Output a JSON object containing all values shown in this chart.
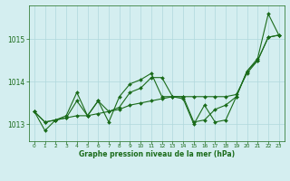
{
  "series1": [
    1013.3,
    1012.85,
    1013.1,
    1013.15,
    1013.55,
    1013.2,
    1013.55,
    1013.3,
    1013.4,
    1013.75,
    1013.85,
    1014.1,
    1014.1,
    1013.65,
    1013.6,
    1013.0,
    1013.45,
    1013.05,
    1013.1,
    1013.65,
    1014.25,
    1014.5,
    1015.05,
    1015.1
  ],
  "series2": [
    1013.3,
    1013.05,
    1013.1,
    1013.2,
    1013.75,
    1013.2,
    1013.55,
    1013.05,
    1013.65,
    1013.95,
    1014.05,
    1014.2,
    1013.65,
    1013.65,
    1013.65,
    1013.05,
    1013.1,
    1013.35,
    1013.45,
    1013.65,
    1014.25,
    1014.55,
    1015.6,
    1015.1
  ],
  "series3": [
    1013.3,
    1013.05,
    1013.1,
    1013.15,
    1013.2,
    1013.2,
    1013.25,
    1013.3,
    1013.35,
    1013.45,
    1013.5,
    1013.55,
    1013.6,
    1013.65,
    1013.65,
    1013.65,
    1013.65,
    1013.65,
    1013.65,
    1013.7,
    1014.2,
    1014.5,
    1015.05,
    1015.1
  ],
  "line_color": "#1a6b1a",
  "bg_color": "#d4eef0",
  "grid_color": "#b0d8dc",
  "xlabel": "Graphe pression niveau de la mer (hPa)",
  "ylim": [
    1012.6,
    1015.8
  ],
  "yticks": [
    1013,
    1014,
    1015
  ],
  "xticks": [
    0,
    1,
    2,
    3,
    4,
    5,
    6,
    7,
    8,
    9,
    10,
    11,
    12,
    13,
    14,
    15,
    16,
    17,
    18,
    19,
    20,
    21,
    22,
    23
  ]
}
